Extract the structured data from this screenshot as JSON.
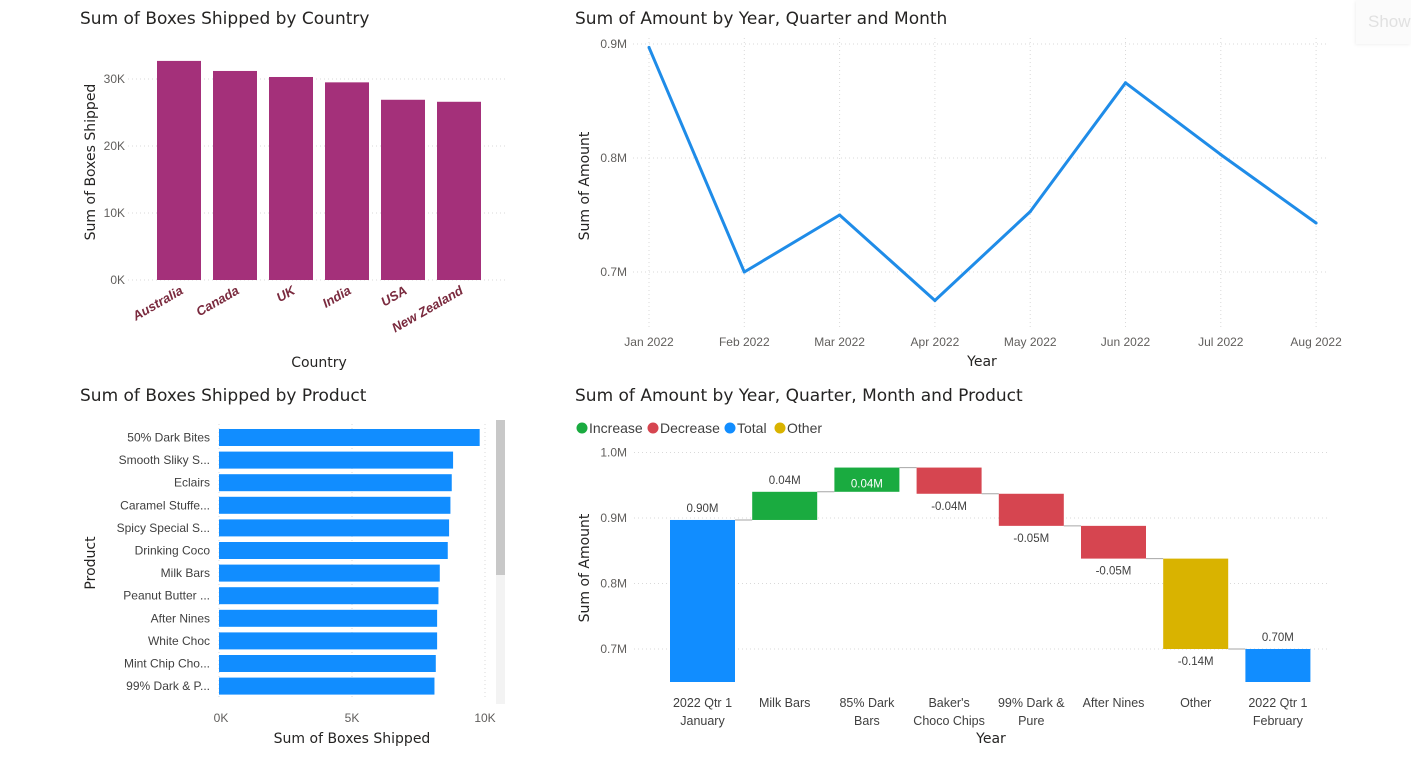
{
  "corner_button": {
    "label": "Show"
  },
  "charts": {
    "country": {
      "title": "Sum of Boxes Shipped by Country",
      "xlabel": "Country",
      "ylabel": "Sum of Boxes Shipped",
      "y_ticks": [
        "0K",
        "10K",
        "20K",
        "30K"
      ],
      "bar_color": "#A4307A",
      "label_color": "#7A2A3E"
    },
    "monthly": {
      "title": "Sum of Amount by Year, Quarter and Month",
      "xlabel": "Year",
      "ylabel": "Sum of Amount",
      "y_ticks": [
        "0.7M",
        "0.8M",
        "0.9M"
      ],
      "line_color": "#1F8CE8"
    },
    "product": {
      "title": "Sum of Boxes Shipped by Product",
      "xlabel": "Sum of Boxes Shipped",
      "ylabel": "Product",
      "x_ticks": [
        "0K",
        "5K",
        "10K"
      ],
      "bar_color": "#118DFF"
    },
    "waterfall": {
      "title": "Sum of Amount by Year, Quarter, Month and Product",
      "xlabel": "Year",
      "ylabel": "Sum of Amount",
      "y_ticks": [
        "0.7M",
        "0.8M",
        "0.9M",
        "1.0M"
      ],
      "legend": [
        {
          "label": "Increase",
          "color": "#1AAB40"
        },
        {
          "label": "Decrease",
          "color": "#D64550"
        },
        {
          "label": "Total",
          "color": "#118DFF"
        },
        {
          "label": "Other",
          "color": "#D9B300"
        }
      ]
    }
  },
  "chart_data": [
    {
      "type": "bar",
      "title": "Sum of Boxes Shipped by Country",
      "xlabel": "Country",
      "ylabel": "Sum of Boxes Shipped",
      "categories": [
        "Australia",
        "Canada",
        "UK",
        "India",
        "USA",
        "New Zealand"
      ],
      "values": [
        32700,
        31200,
        30300,
        29500,
        26900,
        26600
      ],
      "ylim": [
        0,
        33000
      ],
      "grid": true
    },
    {
      "type": "line",
      "title": "Sum of Amount by Year, Quarter and Month",
      "xlabel": "Year",
      "ylabel": "Sum of Amount",
      "x": [
        "Jan 2022",
        "Feb 2022",
        "Mar 2022",
        "Apr 2022",
        "May 2022",
        "Jun 2022",
        "Jul 2022",
        "Aug 2022"
      ],
      "values": [
        0.897,
        0.7,
        0.75,
        0.675,
        0.753,
        0.866,
        0.803,
        0.743
      ],
      "unit": "M",
      "ylim": [
        0.65,
        0.91
      ],
      "grid": true
    },
    {
      "type": "bar",
      "orientation": "horizontal",
      "title": "Sum of Boxes Shipped by Product",
      "xlabel": "Sum of Boxes Shipped",
      "ylabel": "Product",
      "categories": [
        "50% Dark Bites",
        "Smooth Sliky S...",
        "Eclairs",
        "Caramel Stuffe...",
        "Spicy Special S...",
        "Drinking Coco",
        "Milk Bars",
        "Peanut Butter ...",
        "After Nines",
        "White Choc",
        "Mint Chip Cho...",
        "99% Dark & P..."
      ],
      "values": [
        9800,
        8800,
        8750,
        8700,
        8650,
        8600,
        8300,
        8250,
        8200,
        8200,
        8150,
        8100
      ],
      "xlim": [
        0,
        10000
      ],
      "grid": true
    },
    {
      "type": "waterfall",
      "title": "Sum of Amount by Year, Quarter, Month and Product",
      "xlabel": "Year",
      "ylabel": "Sum of Amount",
      "unit": "M",
      "categories": [
        "2022 Qtr 1\nJanuary",
        "Milk Bars",
        "85% Dark\nBars",
        "Baker's\nChoco Chips",
        "99% Dark &\nPure",
        "After Nines",
        "Other",
        "2022 Qtr 1\nFebruary"
      ],
      "steps": [
        {
          "kind": "Total",
          "from": 0,
          "to": 0.897,
          "label": "0.90M"
        },
        {
          "kind": "Increase",
          "from": 0.897,
          "to": 0.94,
          "label": "0.04M"
        },
        {
          "kind": "Increase",
          "from": 0.94,
          "to": 0.977,
          "label": "0.04M"
        },
        {
          "kind": "Decrease",
          "from": 0.977,
          "to": 0.937,
          "label": "-0.04M"
        },
        {
          "kind": "Decrease",
          "from": 0.937,
          "to": 0.888,
          "label": "-0.05M"
        },
        {
          "kind": "Decrease",
          "from": 0.888,
          "to": 0.838,
          "label": "-0.05M"
        },
        {
          "kind": "Other",
          "from": 0.838,
          "to": 0.7,
          "label": "-0.14M"
        },
        {
          "kind": "Total",
          "from": 0,
          "to": 0.7,
          "label": "0.70M"
        }
      ],
      "ylim": [
        0.65,
        1.0
      ],
      "legend": [
        "Increase",
        "Decrease",
        "Total",
        "Other"
      ],
      "legend_position": "top-left",
      "grid": true
    }
  ]
}
